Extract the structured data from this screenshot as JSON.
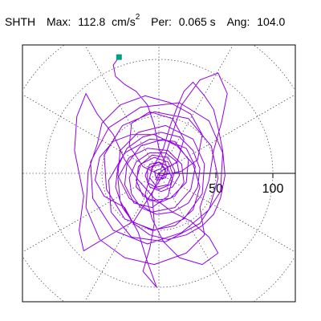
{
  "header": {
    "station": "SHTH",
    "max_label": "Max:",
    "max_value": "112.8",
    "max_unit": "cm/s",
    "max_unit_exp": "2",
    "per_label": "Per:",
    "per_value": "0.065 s",
    "ang_label": "Ang:",
    "ang_value": "104.0"
  },
  "chart_data": {
    "type": "polar-orbit",
    "rlim": [
      0,
      140
    ],
    "radial_ticks": [
      {
        "value": 50,
        "label": "50"
      },
      {
        "value": 100,
        "label": "100"
      }
    ],
    "grid_rings": [
      50,
      100,
      140
    ],
    "grid_spokes_deg": [
      0,
      30,
      60,
      90,
      120,
      150,
      180,
      210,
      240,
      270,
      300,
      330
    ],
    "grid": true,
    "trace_color": "#8f00e8",
    "marker_color": "#00a080",
    "start_marker": [
      -35,
      102
    ],
    "orbit": [
      [
        -35,
        102
      ],
      [
        -40,
        95
      ],
      [
        -38,
        85
      ],
      [
        -30,
        78
      ],
      [
        -20,
        72
      ],
      [
        -10,
        60
      ],
      [
        -4,
        42
      ],
      [
        0,
        22
      ],
      [
        6,
        8
      ],
      [
        12,
        -5
      ],
      [
        8,
        -20
      ],
      [
        -6,
        -30
      ],
      [
        -22,
        -26
      ],
      [
        -30,
        -10
      ],
      [
        -28,
        8
      ],
      [
        -16,
        24
      ],
      [
        4,
        30
      ],
      [
        24,
        22
      ],
      [
        32,
        6
      ],
      [
        28,
        -14
      ],
      [
        14,
        -30
      ],
      [
        -6,
        -34
      ],
      [
        -26,
        -22
      ],
      [
        -36,
        -2
      ],
      [
        -34,
        20
      ],
      [
        -18,
        36
      ],
      [
        6,
        42
      ],
      [
        30,
        30
      ],
      [
        40,
        8
      ],
      [
        38,
        -18
      ],
      [
        22,
        -40
      ],
      [
        -4,
        -50
      ],
      [
        -30,
        -40
      ],
      [
        -46,
        -14
      ],
      [
        -48,
        16
      ],
      [
        -32,
        42
      ],
      [
        -4,
        54
      ],
      [
        26,
        48
      ],
      [
        46,
        24
      ],
      [
        52,
        -4
      ],
      [
        44,
        -32
      ],
      [
        20,
        -52
      ],
      [
        -10,
        -62
      ],
      [
        -40,
        -50
      ],
      [
        -58,
        -22
      ],
      [
        -60,
        10
      ],
      [
        -44,
        40
      ],
      [
        -16,
        58
      ],
      [
        18,
        62
      ],
      [
        44,
        46
      ],
      [
        56,
        18
      ],
      [
        54,
        -16
      ],
      [
        36,
        -44
      ],
      [
        6,
        -60
      ],
      [
        -24,
        -56
      ],
      [
        -42,
        -34
      ],
      [
        -44,
        -6
      ],
      [
        -30,
        18
      ],
      [
        -8,
        30
      ],
      [
        14,
        28
      ],
      [
        26,
        12
      ],
      [
        24,
        -8
      ],
      [
        10,
        -22
      ],
      [
        -8,
        -24
      ],
      [
        -20,
        -12
      ],
      [
        -18,
        6
      ],
      [
        -6,
        16
      ],
      [
        8,
        14
      ],
      [
        14,
        2
      ],
      [
        10,
        -10
      ],
      [
        0,
        -14
      ],
      [
        -10,
        -8
      ],
      [
        -10,
        4
      ],
      [
        0,
        10
      ],
      [
        8,
        6
      ],
      [
        6,
        -4
      ],
      [
        -2,
        -6
      ],
      [
        -4,
        2
      ],
      [
        2,
        4
      ],
      [
        20,
        60
      ],
      [
        36,
        82
      ],
      [
        52,
        88
      ],
      [
        60,
        70
      ],
      [
        55,
        45
      ],
      [
        48,
        20
      ],
      [
        44,
        -6
      ],
      [
        36,
        -30
      ],
      [
        40,
        -54
      ],
      [
        24,
        -70
      ],
      [
        -4,
        -80
      ],
      [
        -30,
        -74
      ],
      [
        -52,
        -58
      ],
      [
        -64,
        -30
      ],
      [
        -62,
        2
      ],
      [
        -54,
        26
      ],
      [
        -50,
        44
      ],
      [
        -34,
        60
      ],
      [
        -12,
        68
      ],
      [
        10,
        62
      ],
      [
        28,
        52
      ],
      [
        38,
        34
      ],
      [
        34,
        12
      ],
      [
        20,
        2
      ],
      [
        2,
        -2
      ],
      [
        -14,
        6
      ],
      [
        -26,
        24
      ],
      [
        -24,
        44
      ],
      [
        -8,
        54
      ],
      [
        12,
        48
      ],
      [
        22,
        30
      ],
      [
        16,
        10
      ],
      [
        2,
        2
      ],
      [
        -6,
        -18
      ],
      [
        -4,
        -44
      ],
      [
        -8,
        -66
      ],
      [
        -14,
        -86
      ],
      [
        -2,
        -100
      ],
      [
        -10,
        -78
      ],
      [
        -18,
        -52
      ],
      [
        -30,
        -30
      ],
      [
        -48,
        -20
      ],
      [
        -56,
        -6
      ],
      [
        -52,
        14
      ],
      [
        -40,
        28
      ],
      [
        -24,
        34
      ],
      [
        -4,
        34
      ],
      [
        16,
        24
      ],
      [
        30,
        8
      ],
      [
        36,
        -12
      ],
      [
        30,
        -32
      ],
      [
        14,
        -46
      ],
      [
        -6,
        -50
      ],
      [
        -24,
        -42
      ],
      [
        -34,
        -24
      ],
      [
        -36,
        -4
      ],
      [
        -26,
        14
      ],
      [
        -10,
        22
      ],
      [
        8,
        20
      ],
      [
        20,
        8
      ],
      [
        22,
        -8
      ],
      [
        14,
        -20
      ],
      [
        0,
        -26
      ],
      [
        -14,
        -20
      ],
      [
        -20,
        -6
      ],
      [
        -16,
        8
      ],
      [
        -4,
        14
      ],
      [
        8,
        10
      ],
      [
        12,
        0
      ],
      [
        8,
        -10
      ],
      [
        -2,
        -12
      ],
      [
        -8,
        -4
      ],
      [
        -6,
        6
      ],
      [
        2,
        8
      ],
      [
        6,
        2
      ],
      [
        -22,
        -42
      ],
      [
        -46,
        -56
      ],
      [
        -66,
        -68
      ],
      [
        -70,
        -50
      ],
      [
        -66,
        -20
      ],
      [
        -74,
        20
      ],
      [
        -72,
        50
      ],
      [
        -64,
        70
      ],
      [
        -54,
        52
      ],
      [
        -40,
        34
      ],
      [
        -30,
        12
      ],
      [
        -18,
        -6
      ],
      [
        -4,
        -22
      ],
      [
        12,
        -34
      ],
      [
        28,
        -42
      ],
      [
        44,
        -56
      ],
      [
        52,
        -70
      ],
      [
        38,
        -80
      ],
      [
        18,
        -74
      ],
      [
        4,
        -60
      ],
      [
        -6,
        -40
      ],
      [
        -12,
        -18
      ],
      [
        -6,
        4
      ],
      [
        4,
        22
      ],
      [
        10,
        42
      ],
      [
        16,
        58
      ],
      [
        22,
        72
      ],
      [
        30,
        80
      ],
      [
        40,
        68
      ],
      [
        48,
        56
      ],
      [
        52,
        40
      ],
      [
        56,
        20
      ],
      [
        58,
        -2
      ],
      [
        54,
        -22
      ],
      [
        48,
        -36
      ],
      [
        38,
        -46
      ],
      [
        24,
        -54
      ],
      [
        8,
        -58
      ],
      [
        -8,
        -54
      ],
      [
        -22,
        -44
      ],
      [
        -32,
        -30
      ],
      [
        -38,
        -12
      ],
      [
        -36,
        6
      ],
      [
        -28,
        22
      ],
      [
        -14,
        32
      ],
      [
        2,
        36
      ],
      [
        18,
        32
      ],
      [
        30,
        20
      ],
      [
        36,
        4
      ],
      [
        34,
        -12
      ],
      [
        26,
        -26
      ],
      [
        12,
        -34
      ],
      [
        -2,
        -36
      ],
      [
        -16,
        -30
      ],
      [
        -24,
        -18
      ],
      [
        -26,
        -4
      ],
      [
        -20,
        10
      ],
      [
        -8,
        18
      ],
      [
        6,
        18
      ],
      [
        16,
        10
      ],
      [
        18,
        -2
      ],
      [
        12,
        -12
      ],
      [
        2,
        -16
      ],
      [
        -8,
        -12
      ],
      [
        -12,
        -2
      ],
      [
        -8,
        8
      ],
      [
        0,
        10
      ],
      [
        6,
        4
      ],
      [
        4,
        -4
      ],
      [
        -2,
        -4
      ],
      [
        0,
        0
      ]
    ]
  }
}
